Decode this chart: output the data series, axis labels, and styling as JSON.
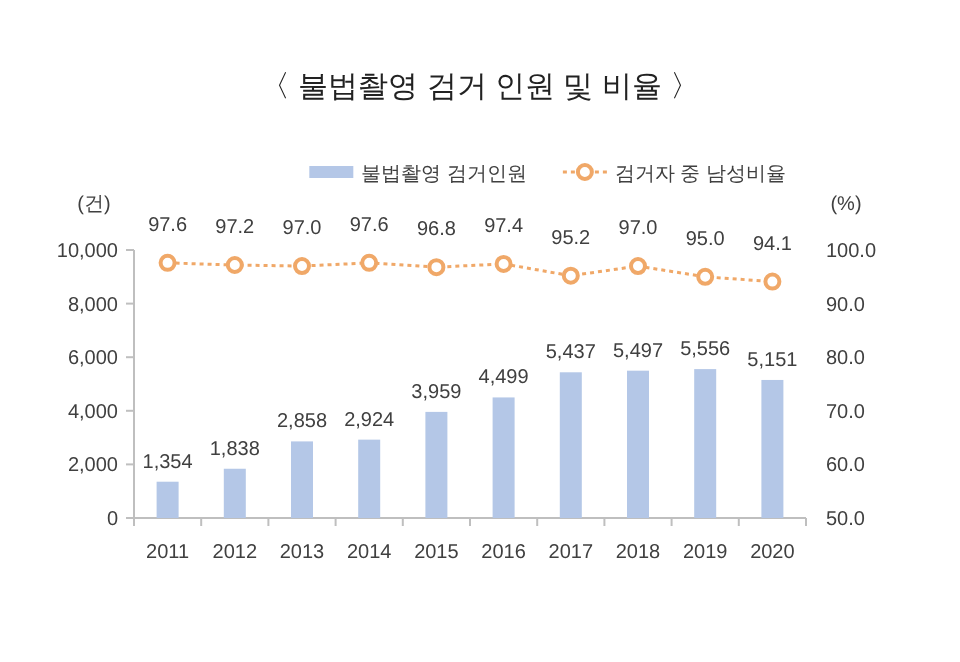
{
  "chart_data": {
    "type": "bar",
    "title": "〈 불법촬영 검거 인원 및 비율 〉",
    "ylabel": "(건)",
    "y2label": "(%)",
    "categories": [
      "2011",
      "2012",
      "2013",
      "2014",
      "2015",
      "2016",
      "2017",
      "2018",
      "2019",
      "2020"
    ],
    "series": [
      {
        "name": "불법촬영 검거인원",
        "color": "#b4c7e7",
        "values": [
          1354,
          1838,
          2858,
          2924,
          3959,
          4499,
          5437,
          5497,
          5556,
          5151
        ],
        "value_labels": [
          "1,354",
          "1,838",
          "2,858",
          "2,924",
          "3,959",
          "4,499",
          "5,437",
          "5,497",
          "5,556",
          "5,151"
        ]
      },
      {
        "name": "검거자 중 남성비율",
        "type": "line",
        "axis": "y2",
        "color": "#f0a868",
        "values": [
          97.6,
          97.2,
          97.0,
          97.6,
          96.8,
          97.4,
          95.2,
          97.0,
          95.0,
          94.1
        ],
        "value_labels": [
          "97.6",
          "97.2",
          "97.0",
          "97.6",
          "96.8",
          "97.4",
          "95.2",
          "97.0",
          "95.0",
          "94.1"
        ]
      }
    ],
    "ylim": [
      0,
      10000
    ],
    "yticks": [
      0,
      {
        "value": 2000,
        "label": "2,000"
      },
      {
        "value": 4000,
        "label": "4,000"
      },
      {
        "value": 6000,
        "label": "6,000"
      },
      {
        "value": 8000,
        "label": "8,000"
      },
      {
        "value": 10000,
        "label": "10,000"
      }
    ],
    "y2lim": [
      50,
      100
    ],
    "y2ticks": [
      {
        "value": 50,
        "label": "50.0"
      },
      {
        "value": 60,
        "label": "60.0"
      },
      {
        "value": 70,
        "label": "70.0"
      },
      {
        "value": 80,
        "label": "80.0"
      },
      {
        "value": 90,
        "label": "90.0"
      },
      {
        "value": 100,
        "label": "100.0"
      }
    ],
    "legend": "top right",
    "marker": "circle",
    "line_style": "dotted"
  }
}
